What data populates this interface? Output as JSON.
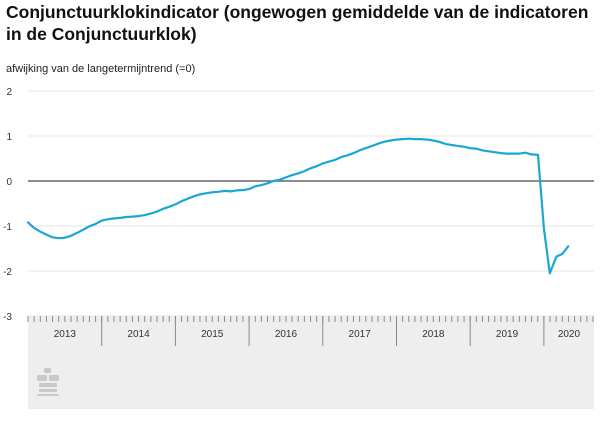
{
  "title": "Conjunctuurklokindicator (ongewogen gemiddelde van de indicatoren in de Conjunctuurklok)",
  "subtitle": "afwijking van de langetermijntrend (=0)",
  "colors": {
    "line": "#1aa7d4",
    "zero_line": "#666666",
    "grid": "#e5e5e5",
    "axis_band": "#eeeeee"
  },
  "logo_icon": "cbs-logo-icon",
  "chart_data": {
    "type": "line",
    "title": "Conjunctuurklokindicator (ongewogen gemiddelde van de indicatoren in de Conjunctuurklok)",
    "ylabel": "afwijking van de langetermijntrend (=0)",
    "xlabel": "",
    "ylim": [
      -3,
      2
    ],
    "yticks": [
      2,
      1,
      0,
      -1,
      -2,
      -3
    ],
    "ytick_labels": [
      "2",
      "1",
      "0",
      "-1",
      "-2",
      "-3"
    ],
    "xlim": [
      2013.0,
      2020.68
    ],
    "year_labels": [
      "2013",
      "2014",
      "2015",
      "2016",
      "2017",
      "2018",
      "2019",
      "2020"
    ],
    "grid": true,
    "legend": "none",
    "series": [
      {
        "points": [
          [
            2013.0,
            -0.92
          ],
          [
            2013.08,
            -1.04
          ],
          [
            2013.17,
            -1.13
          ],
          [
            2013.25,
            -1.19
          ],
          [
            2013.33,
            -1.25
          ],
          [
            2013.42,
            -1.27
          ],
          [
            2013.5,
            -1.26
          ],
          [
            2013.58,
            -1.22
          ],
          [
            2013.67,
            -1.15
          ],
          [
            2013.75,
            -1.08
          ],
          [
            2013.83,
            -1.01
          ],
          [
            2013.92,
            -0.95
          ],
          [
            2014.0,
            -0.88
          ],
          [
            2014.08,
            -0.85
          ],
          [
            2014.17,
            -0.83
          ],
          [
            2014.25,
            -0.82
          ],
          [
            2014.33,
            -0.8
          ],
          [
            2014.42,
            -0.79
          ],
          [
            2014.5,
            -0.78
          ],
          [
            2014.58,
            -0.76
          ],
          [
            2014.67,
            -0.72
          ],
          [
            2014.75,
            -0.68
          ],
          [
            2014.83,
            -0.62
          ],
          [
            2014.92,
            -0.57
          ],
          [
            2015.0,
            -0.52
          ],
          [
            2015.08,
            -0.45
          ],
          [
            2015.17,
            -0.39
          ],
          [
            2015.25,
            -0.34
          ],
          [
            2015.33,
            -0.3
          ],
          [
            2015.42,
            -0.27
          ],
          [
            2015.5,
            -0.25
          ],
          [
            2015.58,
            -0.24
          ],
          [
            2015.67,
            -0.22
          ],
          [
            2015.75,
            -0.23
          ],
          [
            2015.83,
            -0.21
          ],
          [
            2015.92,
            -0.2
          ],
          [
            2016.0,
            -0.18
          ],
          [
            2016.08,
            -0.12
          ],
          [
            2016.17,
            -0.09
          ],
          [
            2016.25,
            -0.05
          ],
          [
            2016.33,
            0.0
          ],
          [
            2016.42,
            0.03
          ],
          [
            2016.5,
            0.08
          ],
          [
            2016.58,
            0.13
          ],
          [
            2016.67,
            0.17
          ],
          [
            2016.75,
            0.22
          ],
          [
            2016.83,
            0.28
          ],
          [
            2016.92,
            0.33
          ],
          [
            2017.0,
            0.39
          ],
          [
            2017.08,
            0.43
          ],
          [
            2017.17,
            0.47
          ],
          [
            2017.25,
            0.53
          ],
          [
            2017.33,
            0.57
          ],
          [
            2017.42,
            0.62
          ],
          [
            2017.5,
            0.68
          ],
          [
            2017.58,
            0.73
          ],
          [
            2017.67,
            0.78
          ],
          [
            2017.75,
            0.83
          ],
          [
            2017.83,
            0.87
          ],
          [
            2017.92,
            0.9
          ],
          [
            2018.0,
            0.92
          ],
          [
            2018.08,
            0.93
          ],
          [
            2018.17,
            0.94
          ],
          [
            2018.25,
            0.93
          ],
          [
            2018.33,
            0.93
          ],
          [
            2018.42,
            0.92
          ],
          [
            2018.5,
            0.9
          ],
          [
            2018.58,
            0.87
          ],
          [
            2018.67,
            0.82
          ],
          [
            2018.75,
            0.8
          ],
          [
            2018.83,
            0.78
          ],
          [
            2018.92,
            0.76
          ],
          [
            2019.0,
            0.73
          ],
          [
            2019.08,
            0.72
          ],
          [
            2019.17,
            0.68
          ],
          [
            2019.25,
            0.66
          ],
          [
            2019.33,
            0.64
          ],
          [
            2019.42,
            0.62
          ],
          [
            2019.5,
            0.61
          ],
          [
            2019.58,
            0.61
          ],
          [
            2019.67,
            0.61
          ],
          [
            2019.75,
            0.63
          ],
          [
            2019.83,
            0.59
          ],
          [
            2019.92,
            0.58
          ],
          [
            2020.0,
            -1.05
          ],
          [
            2020.08,
            -2.05
          ],
          [
            2020.17,
            -1.68
          ],
          [
            2020.25,
            -1.62
          ],
          [
            2020.33,
            -1.45
          ]
        ]
      }
    ]
  }
}
